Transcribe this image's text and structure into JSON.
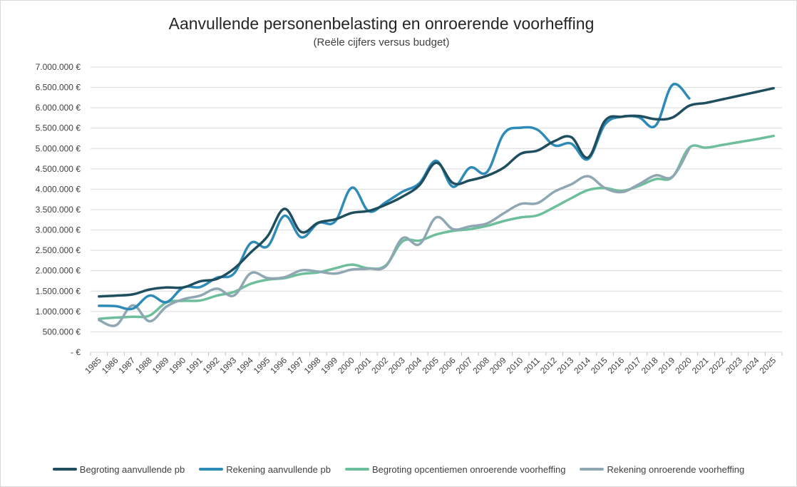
{
  "chart_data": {
    "type": "line",
    "title": "Aanvullende personenbelasting en onroerende voorheffing",
    "subtitle": "(Reële cijfers versus budget)",
    "xlabel": "",
    "ylabel": "",
    "ylim": [
      0,
      7000000
    ],
    "yticks": [
      0,
      500000,
      1000000,
      1500000,
      2000000,
      2500000,
      3000000,
      3500000,
      4000000,
      4500000,
      5000000,
      5500000,
      6000000,
      6500000,
      7000000
    ],
    "ytick_labels": [
      "- €",
      "500.000 €",
      "1.000.000 €",
      "1.500.000 €",
      "2.000.000 €",
      "2.500.000 €",
      "3.000.000 €",
      "3.500.000 €",
      "4.000.000 €",
      "4.500.000 €",
      "5.000.000 €",
      "5.500.000 €",
      "6.000.000 €",
      "6.500.000 €",
      "7.000.000 €"
    ],
    "grid": true,
    "legend_position": "bottom",
    "categories": [
      "1985",
      "1986",
      "1987",
      "1988",
      "1989",
      "1990",
      "1991",
      "1992",
      "1993",
      "1994",
      "1995",
      "1996",
      "1997",
      "1998",
      "1999",
      "2000",
      "2001",
      "2002",
      "2003",
      "2004",
      "2005",
      "2006",
      "2007",
      "2008",
      "2009",
      "2010",
      "2011",
      "2012",
      "2013",
      "2014",
      "2015",
      "2016",
      "2017",
      "2018",
      "2019",
      "2020",
      "2021",
      "2022",
      "2023",
      "2024",
      "2025"
    ],
    "series": [
      {
        "name": "Begroting aanvullende pb",
        "color": "#1f4e5f",
        "values": [
          1370000,
          1390000,
          1420000,
          1540000,
          1590000,
          1590000,
          1740000,
          1800000,
          2050000,
          2450000,
          2850000,
          3520000,
          2950000,
          3180000,
          3260000,
          3420000,
          3470000,
          3620000,
          3820000,
          4100000,
          4650000,
          4150000,
          4220000,
          4330000,
          4530000,
          4870000,
          4950000,
          5180000,
          5280000,
          4780000,
          5680000,
          5780000,
          5800000,
          5720000,
          5760000,
          6050000,
          6120000,
          6210000,
          6300000,
          6390000,
          6480000
        ]
      },
      {
        "name": "Rekening aanvullende pb",
        "color": "#2e8bb8",
        "values": [
          1140000,
          1130000,
          1070000,
          1390000,
          1230000,
          1590000,
          1600000,
          1830000,
          1930000,
          2680000,
          2600000,
          3350000,
          2820000,
          3170000,
          3210000,
          4040000,
          3460000,
          3680000,
          3940000,
          4150000,
          4700000,
          4060000,
          4530000,
          4420000,
          5360000,
          5510000,
          5460000,
          5080000,
          5120000,
          4740000,
          5590000,
          5780000,
          5770000,
          5560000,
          6560000,
          6230000,
          null,
          null,
          null,
          null,
          null
        ]
      },
      {
        "name": "Begroting opcentiemen onroerende voorheffing",
        "color": "#6dbf9c",
        "values": [
          820000,
          850000,
          870000,
          900000,
          1220000,
          1260000,
          1270000,
          1390000,
          1480000,
          1680000,
          1780000,
          1820000,
          1920000,
          1960000,
          2060000,
          2150000,
          2060000,
          2130000,
          2720000,
          2740000,
          2890000,
          2980000,
          3020000,
          3100000,
          3220000,
          3310000,
          3360000,
          3560000,
          3780000,
          3980000,
          4030000,
          3960000,
          4080000,
          4250000,
          4300000,
          5020000,
          5020000,
          5090000,
          5160000,
          5230000,
          5310000
        ]
      },
      {
        "name": "Rekening onroerende voorheffing",
        "color": "#8fa7b3",
        "values": [
          790000,
          660000,
          1150000,
          760000,
          1120000,
          1300000,
          1390000,
          1560000,
          1390000,
          1940000,
          1820000,
          1840000,
          2010000,
          1980000,
          1930000,
          2030000,
          2050000,
          2110000,
          2800000,
          2650000,
          3310000,
          3020000,
          3090000,
          3160000,
          3410000,
          3640000,
          3660000,
          3940000,
          4120000,
          4320000,
          4030000,
          3930000,
          4120000,
          4340000,
          4310000,
          5000000,
          null,
          null,
          null,
          null,
          null
        ]
      }
    ]
  }
}
